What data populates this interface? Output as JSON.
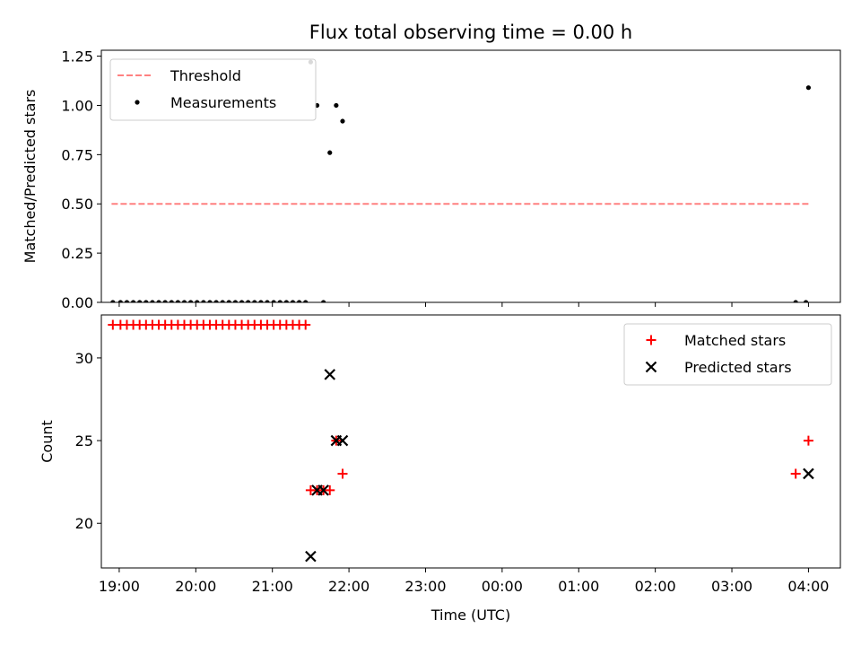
{
  "chart_data": [
    {
      "type": "scatter",
      "title": "Flux total observing time = 0.00 h",
      "xlabel": "",
      "ylabel": "Matched/Predicted stars",
      "x_unit": "time-of-day (UTC)",
      "xlim": [
        "18:46",
        "04:25"
      ],
      "ylim": [
        0,
        1.28
      ],
      "yticks": [
        0,
        0.25,
        0.5,
        0.75,
        1.0,
        1.25
      ],
      "ytick_labels": [
        "0.00",
        "0.25",
        "0.50",
        "0.75",
        "1.00",
        "1.25"
      ],
      "xtick_labels_visible": false,
      "legend_position": "top-left",
      "threshold": {
        "name": "Threshold",
        "x": [
          "18:54",
          "04:00"
        ],
        "y": 0.5,
        "color": "#ff8080",
        "style": "dashed"
      },
      "series": [
        {
          "name": "Measurements",
          "color": "#000000",
          "marker": "dot",
          "points": [
            [
              "18:55",
              0
            ],
            [
              "19:01",
              0
            ],
            [
              "19:06",
              0
            ],
            [
              "19:11",
              0
            ],
            [
              "19:16",
              0
            ],
            [
              "19:21",
              0
            ],
            [
              "19:26",
              0
            ],
            [
              "19:31",
              0
            ],
            [
              "19:36",
              0
            ],
            [
              "19:41",
              0
            ],
            [
              "19:46",
              0
            ],
            [
              "19:51",
              0
            ],
            [
              "19:56",
              0
            ],
            [
              "20:01",
              0
            ],
            [
              "20:06",
              0
            ],
            [
              "20:11",
              0
            ],
            [
              "20:16",
              0
            ],
            [
              "20:21",
              0
            ],
            [
              "20:26",
              0
            ],
            [
              "20:31",
              0
            ],
            [
              "20:36",
              0
            ],
            [
              "20:41",
              0
            ],
            [
              "20:46",
              0
            ],
            [
              "20:51",
              0
            ],
            [
              "20:56",
              0
            ],
            [
              "21:01",
              0
            ],
            [
              "21:06",
              0
            ],
            [
              "21:11",
              0
            ],
            [
              "21:16",
              0
            ],
            [
              "21:21",
              0
            ],
            [
              "21:26",
              0
            ],
            [
              "21:30",
              1.22
            ],
            [
              "21:35",
              1.0
            ],
            [
              "21:40",
              0
            ],
            [
              "21:45",
              0.76
            ],
            [
              "21:50",
              1.0
            ],
            [
              "21:55",
              0.92
            ],
            [
              "03:50",
              0
            ],
            [
              "03:58",
              0
            ],
            [
              "04:00",
              1.09
            ]
          ]
        }
      ]
    },
    {
      "type": "scatter",
      "title": "",
      "xlabel": "Time (UTC)",
      "ylabel": "Count",
      "x_unit": "time-of-day (UTC)",
      "xlim": [
        "18:46",
        "04:25"
      ],
      "ylim": [
        17.3,
        32.6
      ],
      "yticks": [
        20,
        25,
        30
      ],
      "ytick_labels": [
        "20",
        "25",
        "30"
      ],
      "xticks": [
        "19:00",
        "20:00",
        "21:00",
        "22:00",
        "23:00",
        "00:00",
        "01:00",
        "02:00",
        "03:00",
        "04:00"
      ],
      "xtick_labels": [
        "19:00",
        "20:00",
        "21:00",
        "22:00",
        "23:00",
        "00:00",
        "01:00",
        "02:00",
        "03:00",
        "04:00"
      ],
      "legend_position": "top-right",
      "series": [
        {
          "name": "Matched stars",
          "color": "#ff0000",
          "marker": "plus",
          "points": [
            [
              "18:55",
              32
            ],
            [
              "19:01",
              32
            ],
            [
              "19:06",
              32
            ],
            [
              "19:11",
              32
            ],
            [
              "19:16",
              32
            ],
            [
              "19:21",
              32
            ],
            [
              "19:26",
              32
            ],
            [
              "19:31",
              32
            ],
            [
              "19:36",
              32
            ],
            [
              "19:41",
              32
            ],
            [
              "19:46",
              32
            ],
            [
              "19:51",
              32
            ],
            [
              "19:56",
              32
            ],
            [
              "20:01",
              32
            ],
            [
              "20:06",
              32
            ],
            [
              "20:11",
              32
            ],
            [
              "20:16",
              32
            ],
            [
              "20:21",
              32
            ],
            [
              "20:26",
              32
            ],
            [
              "20:31",
              32
            ],
            [
              "20:36",
              32
            ],
            [
              "20:41",
              32
            ],
            [
              "20:46",
              32
            ],
            [
              "20:51",
              32
            ],
            [
              "20:56",
              32
            ],
            [
              "21:01",
              32
            ],
            [
              "21:06",
              32
            ],
            [
              "21:11",
              32
            ],
            [
              "21:16",
              32
            ],
            [
              "21:21",
              32
            ],
            [
              "21:26",
              32
            ],
            [
              "21:30",
              22
            ],
            [
              "21:35",
              22
            ],
            [
              "21:40",
              22
            ],
            [
              "21:45",
              22
            ],
            [
              "21:50",
              25
            ],
            [
              "21:55",
              23
            ],
            [
              "03:50",
              23
            ],
            [
              "04:00",
              25
            ]
          ]
        },
        {
          "name": "Predicted stars",
          "color": "#000000",
          "marker": "x",
          "points": [
            [
              "21:30",
              18
            ],
            [
              "21:35",
              22
            ],
            [
              "21:40",
              22
            ],
            [
              "21:45",
              29
            ],
            [
              "21:50",
              25
            ],
            [
              "21:55",
              25
            ],
            [
              "04:00",
              23
            ]
          ]
        }
      ]
    }
  ]
}
